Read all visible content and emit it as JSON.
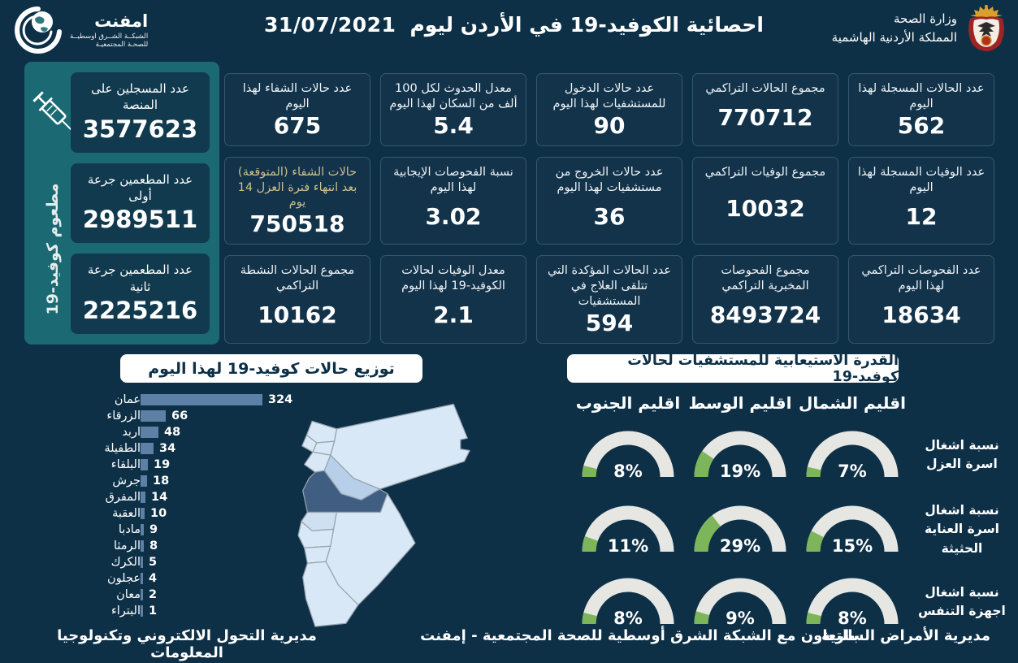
{
  "header": {
    "title": "احصائية الكوفيد-19 في الأردن ليوم",
    "date": "31/07/2021",
    "logo": {
      "name": "امفنت",
      "line1": "الشبكــة الشــرق اوسطيــة",
      "line2": "للصحـة المجتمعيـة"
    },
    "ministry": {
      "line1": "وزارة الصحة",
      "line2": "المملكة الأردنية الهاشمية"
    }
  },
  "vaccination_panel": {
    "side_label": "مطعوم كوفيد-19",
    "cards": [
      {
        "label": "عدد المسجلين على المنصة",
        "value": "3577623"
      },
      {
        "label": "عدد المطعمين جرعة أولى",
        "value": "2989511"
      },
      {
        "label": "عدد المطعمين جرعة ثانية",
        "value": "2225216"
      }
    ]
  },
  "stat_columns": [
    [
      {
        "label": "عدد الحالات المسجلة لهذا اليوم",
        "value": "562"
      },
      {
        "label": "عدد الوفيات المسجلة لهذا اليوم",
        "value": "12"
      },
      {
        "label": "عدد الفحوصات التراكمي لهذا اليوم",
        "value": "18634"
      }
    ],
    [
      {
        "label": "مجموع الحالات التراكمي",
        "value": "770712"
      },
      {
        "label": "مجموع الوفيات التراكمي",
        "value": "10032"
      },
      {
        "label": "مجموع الفحوصات المخبرية التراكمي",
        "value": "8493724"
      }
    ],
    [
      {
        "label": "عدد حالات الدخول للمستشفيات لهذا اليوم",
        "value": "90"
      },
      {
        "label": "عدد حالات الخروج من مستشفيات لهذا اليوم",
        "value": "36"
      },
      {
        "label": "عدد الحالات المؤكدة التي تتلقى العلاج في المستشفيات",
        "value": "594"
      }
    ],
    [
      {
        "label": "معدل الحدوث لكل 100 ألف من السكان لهذا اليوم",
        "value": "5.4"
      },
      {
        "label": "نسبة الفحوصات الإيجابية لهذا اليوم",
        "value": "3.02"
      },
      {
        "label": "معدل الوفيات لحالات الكوفيد-19 لهذا اليوم",
        "value": "2.1"
      }
    ],
    [
      {
        "label": "عدد حالات الشفاء لهذا اليوم",
        "value": "675"
      },
      {
        "label": "حالات الشفاء (المتوقعة) بعد انتهاء فترة العزل 14 يوم",
        "value": "750518",
        "label_color": "#cdbf90"
      },
      {
        "label": "مجموع الحالات النشطة التراكمي",
        "value": "10162"
      }
    ]
  ],
  "chart_data": [
    {
      "type": "bar",
      "orientation": "horizontal",
      "title": "توزيع حالات كوفيد-19 لهذا اليوم",
      "categories": [
        "عمان",
        "الزرقاء",
        "اربد",
        "الطفيلة",
        "البلقاء",
        "جرش",
        "المفرق",
        "العقبة",
        "مادبا",
        "الرمثا",
        "الكرك",
        "عجلون",
        "معان",
        "البتراء"
      ],
      "values": [
        324,
        66,
        48,
        34,
        19,
        18,
        14,
        10,
        9,
        8,
        5,
        4,
        2,
        1
      ],
      "xlim": [
        0,
        324
      ],
      "bar_color": "#5d80a7"
    },
    {
      "type": "gauge-grid",
      "title": "القدرة الاستيعابية للمستشفيات لحالات كوفيد-19",
      "columns": [
        "اقليم الشمال",
        "اقليم الوسط",
        "اقليم الجنوب"
      ],
      "rows": [
        {
          "label": "نسبة اشغال اسرة العزل",
          "values_pct": [
            7,
            19,
            8
          ]
        },
        {
          "label": "نسبة اشغال اسرة العناية الحثيثة",
          "values_pct": [
            15,
            29,
            11
          ]
        },
        {
          "label": "نسبة اشغال اجهزة التنفس",
          "values_pct": [
            8,
            9,
            8
          ]
        }
      ],
      "track_color": "#e6e6e3",
      "fill_color": "#7db65a"
    }
  ],
  "map": {
    "highlighted_region": "عمان",
    "base_color": "#d9e8f7",
    "secondary_color": "#b7cfe9",
    "highlight_color": "#3f5e82"
  },
  "footer": {
    "right": "مديرية الأمراض السارية",
    "center": "بالتعاون مع الشبكة الشرق أوسطية للصحة المجتمعية - إمفنت",
    "left": "مديرية التحول الالكتروني وتكنولوجيا المعلومات"
  },
  "colors": {
    "background": "#0d3047",
    "card": "#12334a",
    "teal_panel": "#1b6a73",
    "pill": "#ffffff"
  }
}
